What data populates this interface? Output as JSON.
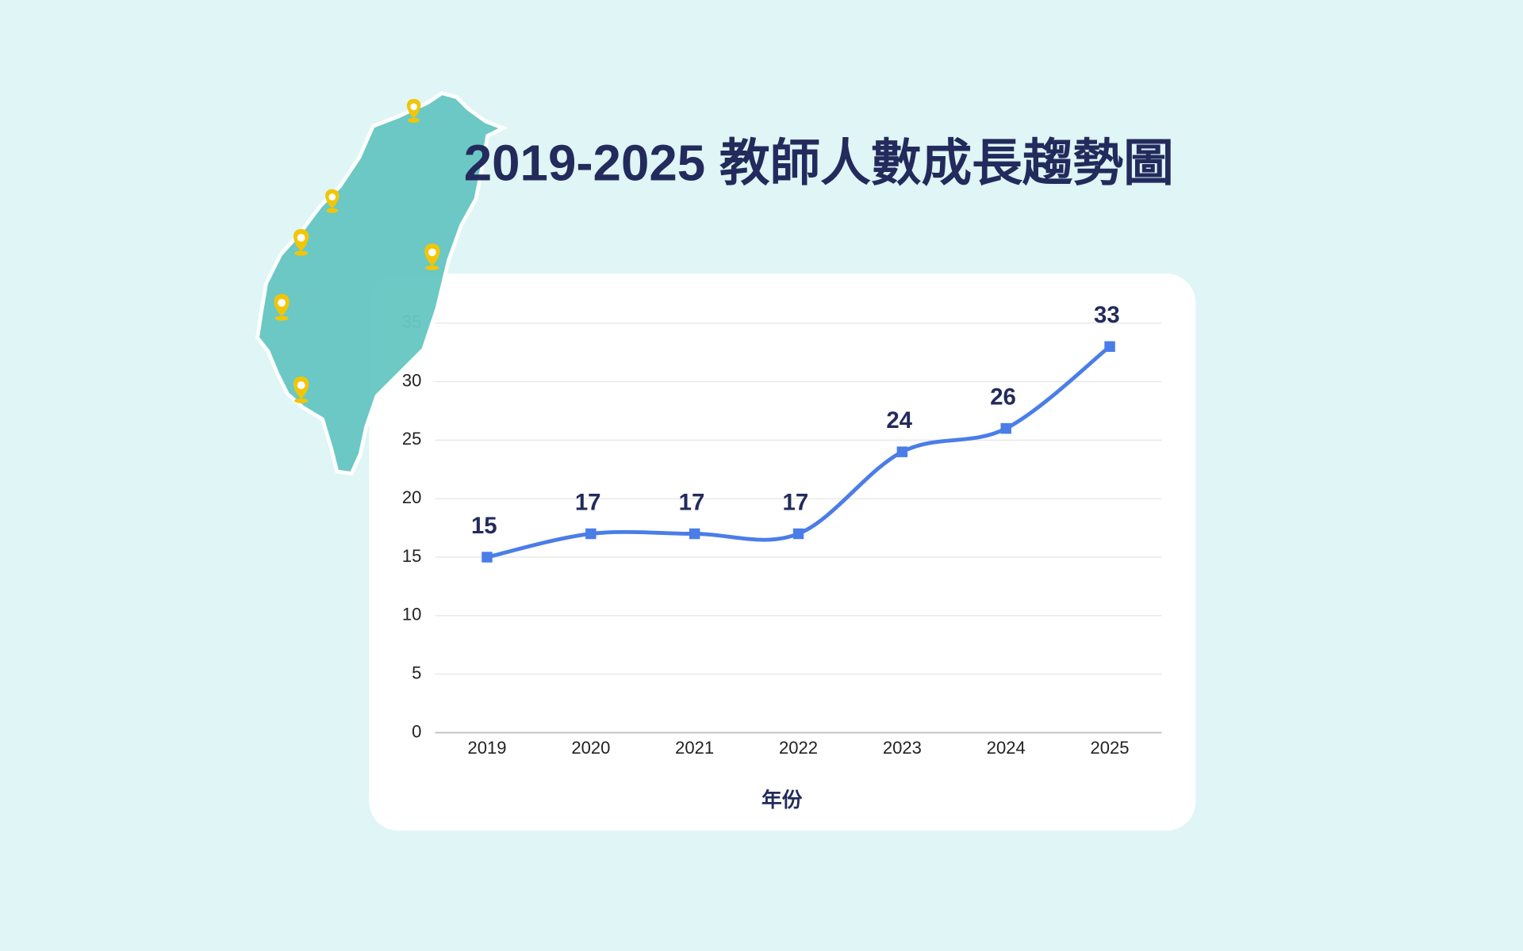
{
  "chart_data": {
    "type": "line",
    "title": "2019-2025  教師人數成長趨勢圖",
    "x_label": "年份",
    "categories": [
      "2019",
      "2020",
      "2021",
      "2022",
      "2023",
      "2024",
      "2025"
    ],
    "values": [
      15,
      17,
      17,
      17,
      24,
      26,
      33
    ],
    "color": "#4a7de8",
    "ylim": [
      0,
      35
    ],
    "yticks": [
      0,
      5,
      10,
      15,
      20,
      25,
      30,
      35
    ],
    "grid": true
  }
}
